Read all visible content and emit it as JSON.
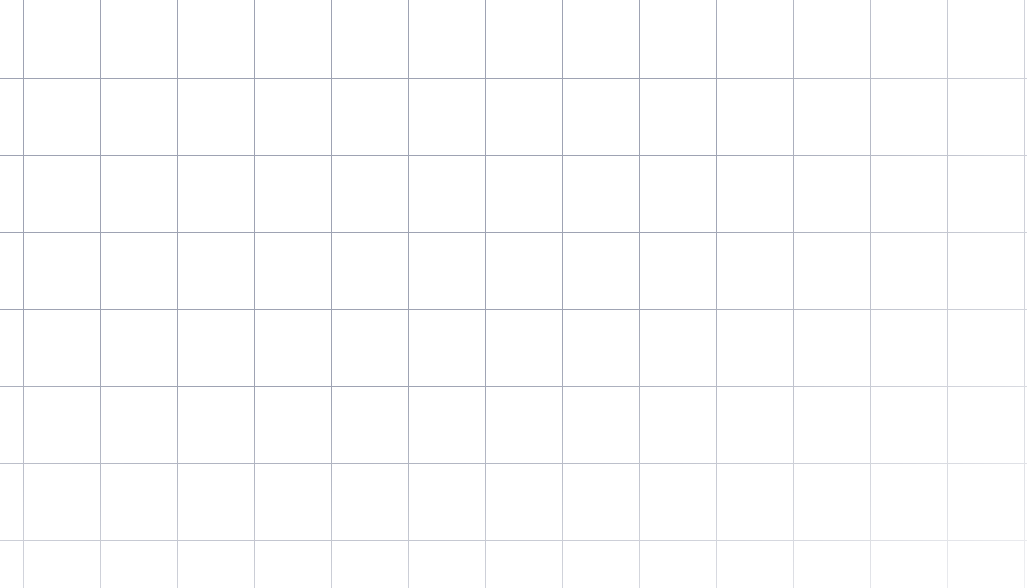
{
  "background": {
    "color": "#ffffff",
    "grid_line_color": "#9ea3b3",
    "pattern": "square-grid",
    "fade": "toward-bottom-right"
  }
}
